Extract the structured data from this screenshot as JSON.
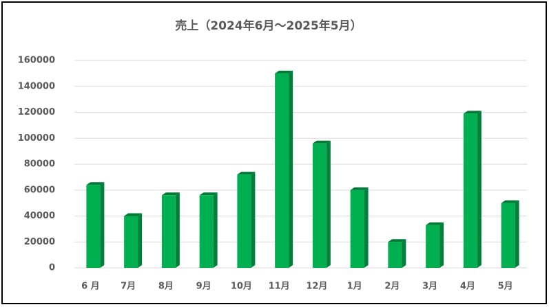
{
  "chart_data": {
    "type": "bar3d",
    "title": "売上（2024年6月～2025年5月）",
    "categories": [
      "6 月",
      "7月",
      "8月",
      "9月",
      "10月",
      "11月",
      "12月",
      "1月",
      "2月",
      "3月",
      "4月",
      "5月"
    ],
    "values": [
      64000,
      40000,
      56000,
      56000,
      72000,
      150000,
      96000,
      60000,
      20000,
      33000,
      119000,
      50000
    ],
    "color": "#00b050",
    "ylim": [
      0,
      160000
    ],
    "yticks": [
      0,
      20000,
      40000,
      60000,
      80000,
      100000,
      120000,
      140000,
      160000
    ],
    "grid": true
  }
}
